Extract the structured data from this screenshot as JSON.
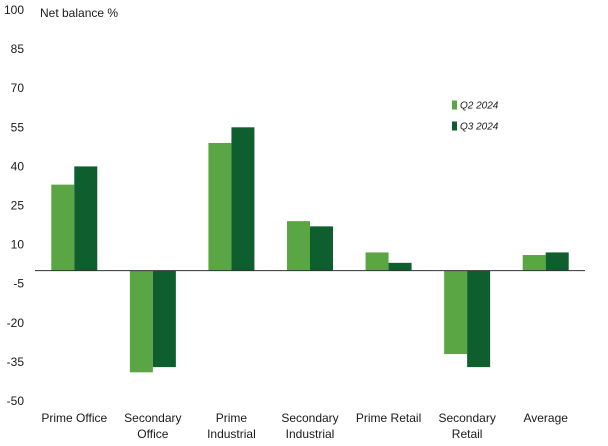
{
  "chart_data": {
    "type": "bar",
    "ylabel": "Net balance %",
    "ylim": [
      -50,
      100
    ],
    "yticks": [
      100,
      85,
      70,
      55,
      40,
      25,
      10,
      -5,
      -20,
      -35,
      -50
    ],
    "grid": false,
    "legend_position": "right",
    "categories": [
      [
        "Prime Office"
      ],
      [
        "Secondary",
        "Office"
      ],
      [
        "Prime",
        "Industrial"
      ],
      [
        "Secondary",
        "Industrial"
      ],
      [
        "Prime Retail"
      ],
      [
        "Secondary",
        "Retail"
      ],
      [
        "Average"
      ]
    ],
    "series": [
      {
        "name": "Q2 2024",
        "color": "#5aa544",
        "values": [
          33,
          -39,
          49,
          19,
          7,
          -32,
          6
        ]
      },
      {
        "name": "Q3 2024",
        "color": "#0f5f2e",
        "values": [
          40,
          -37,
          55,
          17,
          3,
          -37,
          7
        ]
      }
    ]
  }
}
